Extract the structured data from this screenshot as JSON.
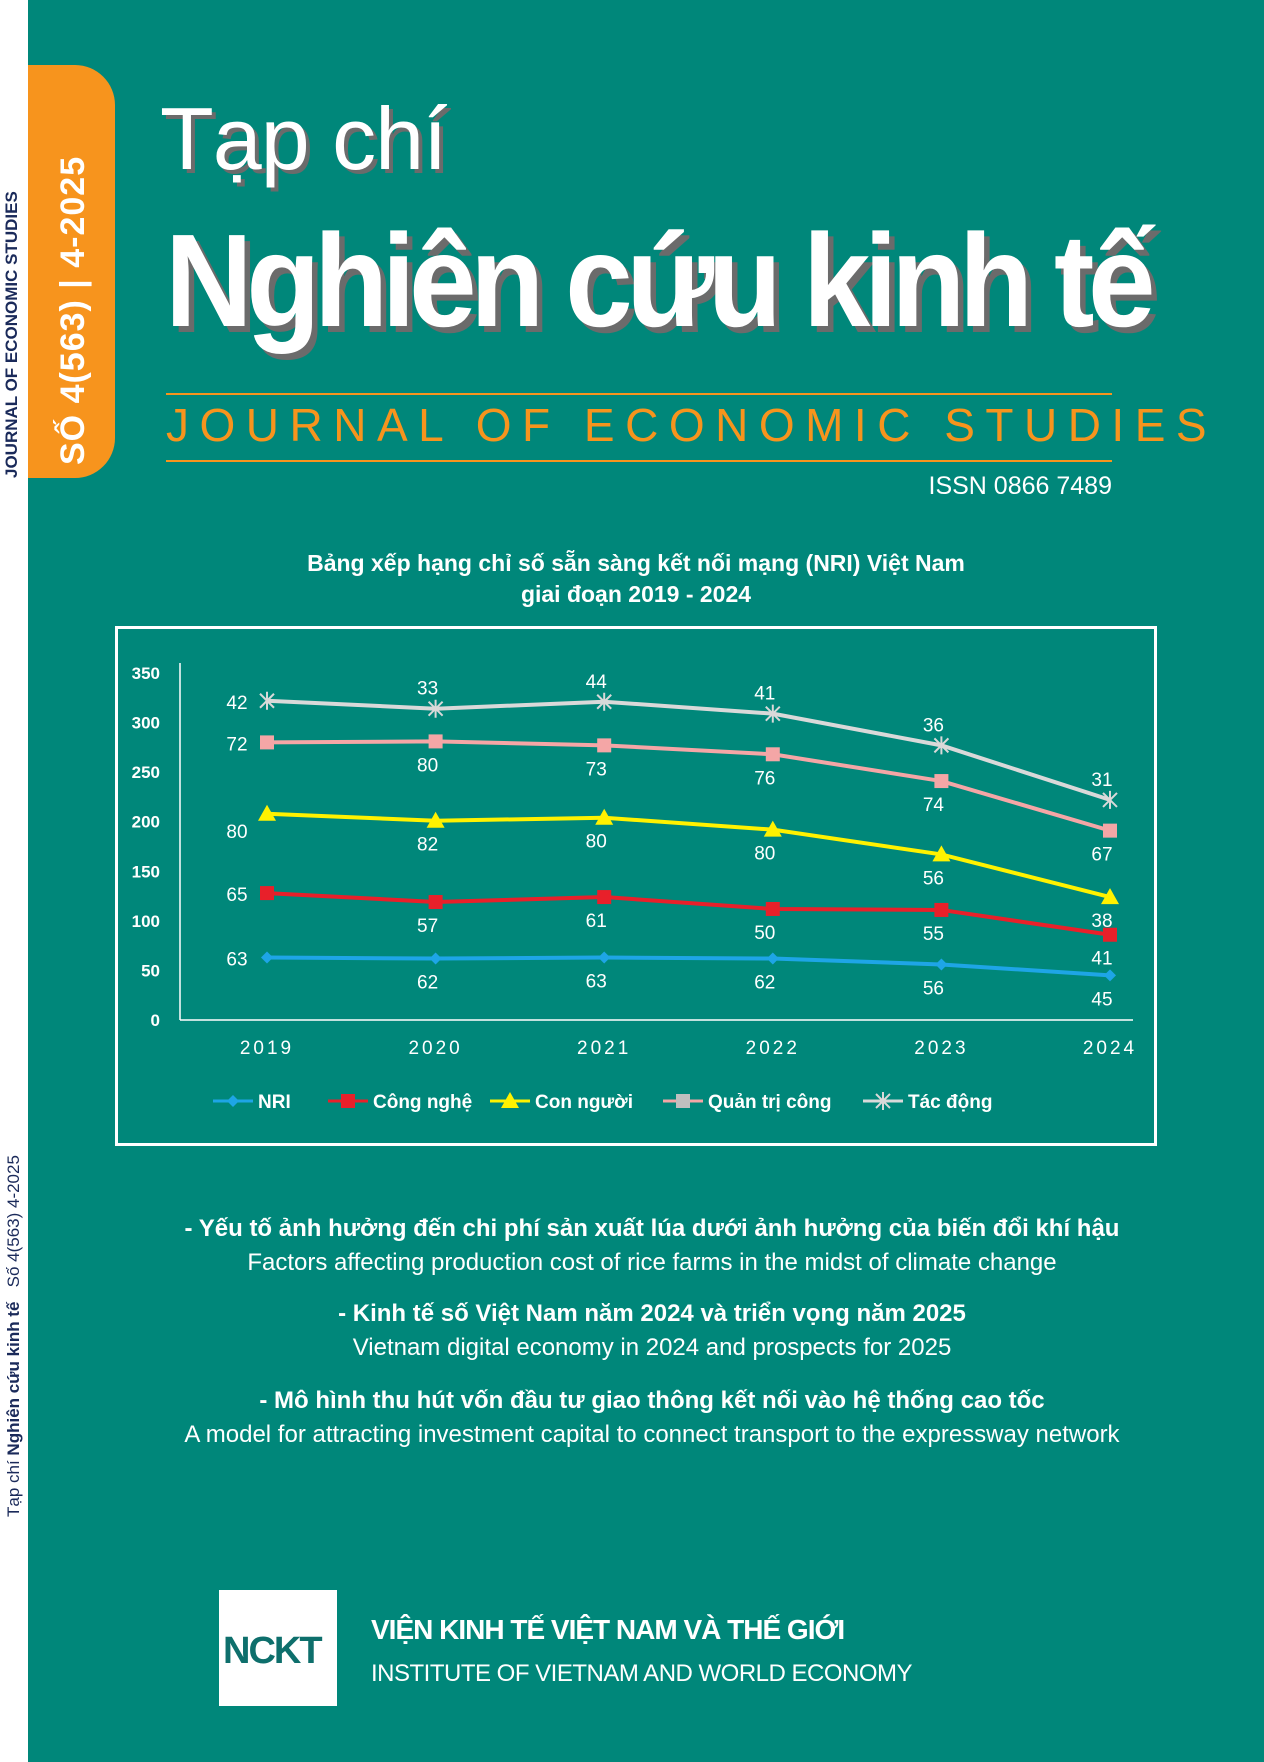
{
  "spine": {
    "journal_en": "JOURNAL OF ECONOMIC STUDIES",
    "spine_prefix": "Tạp chí",
    "spine_name": "Nghiên cứu kinh tế",
    "spine_issue": "Số 4(563) 4-2025"
  },
  "issue_tab": "SỐ 4(563) | 4-2025",
  "masthead": {
    "line1": "Tạp chí",
    "line2": "Nghiên cứu kinh tế",
    "english": "JOURNAL OF ECONOMIC STUDIES",
    "issn": "ISSN 0866 7489"
  },
  "chart_data": {
    "type": "line",
    "title_line1": "Bảng xếp hạng chỉ số sẵn sàng kết nối mạng (NRI) Việt Nam",
    "title_line2": "giai đoạn 2019 - 2024",
    "stacked": true,
    "categories": [
      "2019",
      "2020",
      "2021",
      "2022",
      "2023",
      "2024"
    ],
    "ylim": [
      0,
      350
    ],
    "yticks": [
      "0",
      "50",
      "100",
      "150",
      "200",
      "250",
      "300",
      "350"
    ],
    "legend_position": "bottom",
    "series": [
      {
        "name": "NRI",
        "color": "#1ea5e6",
        "marker": "diamond",
        "values": [
          63,
          62,
          63,
          62,
          56,
          45
        ]
      },
      {
        "name": "Công nghệ",
        "color": "#e8202a",
        "marker": "square",
        "values": [
          65,
          57,
          61,
          50,
          55,
          41
        ]
      },
      {
        "name": "Con người",
        "color": "#fff200",
        "marker": "triangle",
        "values": [
          80,
          82,
          80,
          80,
          56,
          38
        ]
      },
      {
        "name": "Quản trị công",
        "color": "#f4a6a6",
        "marker": "square",
        "values": [
          72,
          80,
          73,
          76,
          74,
          67
        ]
      },
      {
        "name": "Tác động",
        "color": "#d9d9d9",
        "marker": "star",
        "values": [
          42,
          33,
          44,
          41,
          36,
          31
        ]
      }
    ]
  },
  "articles": [
    {
      "vi": "- Yếu tố ảnh hưởng đến chi phí sản xuất lúa dưới ảnh hưởng của biến đổi khí hậu",
      "en": "Factors affecting production cost of rice farms in the midst of climate change"
    },
    {
      "vi": "- Kinh tế số Việt Nam năm 2024 và triển vọng năm 2025",
      "en": "Vietnam digital economy in 2024 and prospects for 2025"
    },
    {
      "vi": "- Mô hình thu hút vốn đầu tư giao thông kết nối vào hệ thống cao tốc",
      "en": "A model for attracting investment capital to connect transport to the expressway network"
    }
  ],
  "publisher": {
    "logo_text": "NCKT",
    "name_vi": "VIỆN KINH TẾ VIỆT NAM VÀ THẾ GIỚI",
    "name_en": "INSTITUTE OF VIETNAM AND WORLD ECONOMY"
  }
}
